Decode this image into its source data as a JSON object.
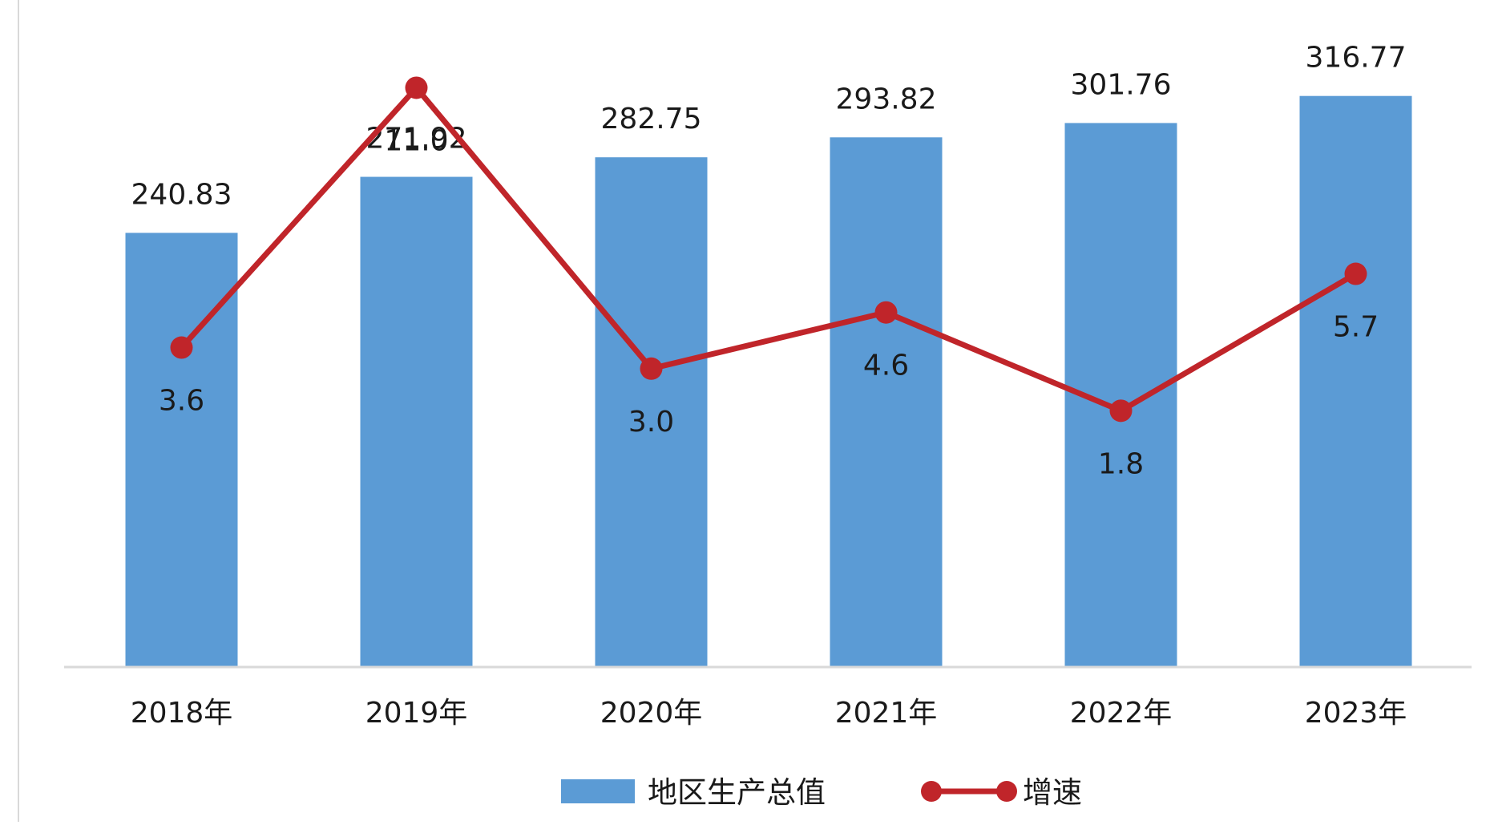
{
  "chart_data": {
    "type": "bar",
    "categories": [
      "2018年",
      "2019年",
      "2020年",
      "2021年",
      "2022年",
      "2023年"
    ],
    "series": [
      {
        "name": "地区生产总值",
        "type": "bar",
        "color": "#5b9bd5",
        "values": [
          240.83,
          271.92,
          282.75,
          293.82,
          301.76,
          316.77
        ],
        "labels": [
          "240.83",
          "271.92",
          "282.75",
          "293.82",
          "301.76",
          "316.77"
        ]
      },
      {
        "name": "增速",
        "type": "line",
        "color": "#c0252a",
        "values": [
          3.6,
          11.0,
          3.0,
          4.6,
          1.8,
          5.7
        ],
        "labels": [
          "3.6",
          "11.0",
          "3.0",
          "4.6",
          "1.8",
          "5.7"
        ]
      }
    ],
    "title": "",
    "xlabel": "",
    "ylabel": "",
    "bar_axis_range": [
      0,
      370
    ],
    "line_axis_range": [
      -5.5,
      13.5
    ],
    "grid": false,
    "legend_position": "bottom"
  }
}
